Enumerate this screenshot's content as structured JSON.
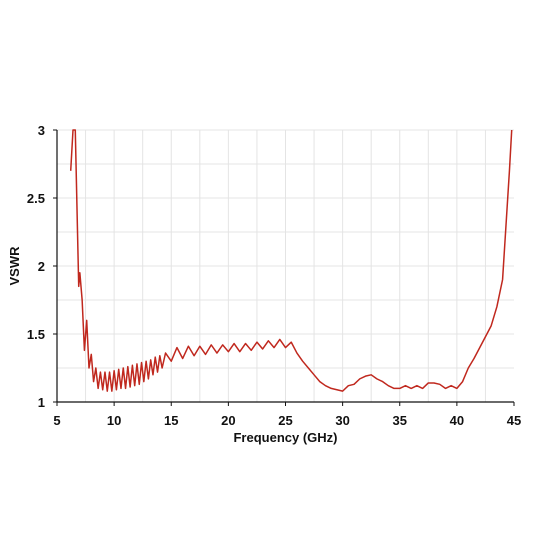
{
  "chart_data": {
    "type": "line",
    "title": "",
    "xlabel": "Frequency  (GHz)",
    "ylabel": "VSWR",
    "xlim": [
      5,
      45
    ],
    "ylim": [
      1,
      3
    ],
    "x_ticks": [
      "5",
      "10",
      "15",
      "20",
      "25",
      "30",
      "35",
      "40",
      "45"
    ],
    "y_ticks": [
      "1",
      "1.5",
      "2",
      "2.5",
      "3"
    ],
    "grid": true,
    "line_color": "#c0281e",
    "series": [
      {
        "x": [
          6.2,
          6.4,
          6.6,
          6.9,
          7.0,
          7.2,
          7.4,
          7.6,
          7.8,
          8.0,
          8.2,
          8.4,
          8.6,
          8.8,
          9.0,
          9.2,
          9.4,
          9.6,
          9.8,
          10.0,
          10.2,
          10.4,
          10.6,
          10.8,
          11.0,
          11.2,
          11.4,
          11.6,
          11.8,
          12.0,
          12.2,
          12.4,
          12.6,
          12.8,
          13.0,
          13.2,
          13.4,
          13.6,
          13.8,
          14.0,
          14.2,
          14.5,
          15.0,
          15.5,
          16.0,
          16.5,
          17.0,
          17.5,
          18.0,
          18.5,
          19.0,
          19.5,
          20.0,
          20.5,
          21.0,
          21.5,
          22.0,
          22.5,
          23.0,
          23.5,
          24.0,
          24.5,
          25.0,
          25.5,
          26.0,
          26.5,
          27.0,
          27.5,
          28.0,
          28.5,
          29.0,
          29.5,
          30.0,
          30.5,
          31.0,
          31.5,
          32.0,
          32.5,
          33.0,
          33.5,
          34.0,
          34.5,
          35.0,
          35.5,
          36.0,
          36.5,
          37.0,
          37.5,
          38.0,
          38.5,
          39.0,
          39.5,
          40.0,
          40.5,
          41.0,
          41.5,
          42.0,
          42.5,
          43.0,
          43.5,
          44.0,
          44.3,
          44.6,
          44.8
        ],
        "y": [
          2.7,
          3.0,
          3.0,
          1.85,
          1.95,
          1.75,
          1.38,
          1.6,
          1.25,
          1.35,
          1.15,
          1.25,
          1.1,
          1.22,
          1.09,
          1.22,
          1.08,
          1.22,
          1.08,
          1.23,
          1.09,
          1.24,
          1.1,
          1.25,
          1.1,
          1.26,
          1.11,
          1.27,
          1.12,
          1.28,
          1.13,
          1.29,
          1.15,
          1.3,
          1.17,
          1.31,
          1.2,
          1.33,
          1.22,
          1.34,
          1.25,
          1.36,
          1.3,
          1.4,
          1.32,
          1.41,
          1.34,
          1.41,
          1.35,
          1.42,
          1.36,
          1.42,
          1.37,
          1.43,
          1.37,
          1.43,
          1.38,
          1.44,
          1.39,
          1.45,
          1.4,
          1.46,
          1.4,
          1.44,
          1.36,
          1.3,
          1.25,
          1.2,
          1.15,
          1.12,
          1.1,
          1.09,
          1.08,
          1.12,
          1.13,
          1.17,
          1.19,
          1.2,
          1.17,
          1.15,
          1.12,
          1.1,
          1.1,
          1.12,
          1.1,
          1.12,
          1.1,
          1.14,
          1.14,
          1.13,
          1.1,
          1.12,
          1.1,
          1.15,
          1.25,
          1.32,
          1.4,
          1.48,
          1.56,
          1.7,
          1.9,
          2.3,
          2.7,
          3.0
        ]
      }
    ]
  }
}
